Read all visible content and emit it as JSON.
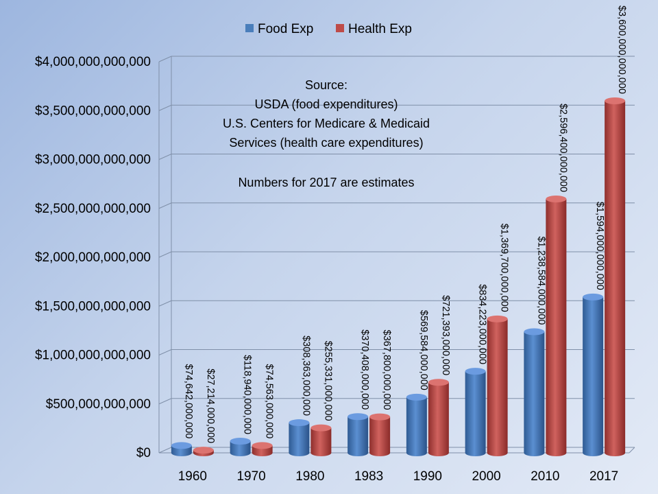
{
  "chart_data": {
    "type": "bar",
    "title": "",
    "xlabel": "",
    "ylabel": "",
    "categories": [
      "1960",
      "1970",
      "1980",
      "1983",
      "1990",
      "2000",
      "2010",
      "2017"
    ],
    "series": [
      {
        "name": "Food Exp",
        "color": "#4a7ebb",
        "values": [
          74642000000,
          118940000000,
          308363000000,
          370408000000,
          569584000000,
          834223000000,
          1238584000000,
          1594000000000
        ],
        "labels": [
          "$74,642,000,000",
          "$118,940,000,000",
          "$308,363,000,000",
          "$370,408,000,000",
          "$569,584,000,000",
          "$834,223,000,000",
          "$1,238,584,000,000",
          "$1,594,000,000,000"
        ]
      },
      {
        "name": "Health Exp",
        "color": "#be4b48",
        "values": [
          27214000000,
          74563000000,
          255331000000,
          367800000000,
          721393000000,
          1369700000000,
          2596400000000,
          3600000000000
        ],
        "labels": [
          "$27,214,000,000",
          "$74,563,000,000",
          "$255,331,000,000",
          "$367,800,000,000",
          "$721,393,000,000",
          "$1,369,700,000,000",
          "$2,596,400,000,000",
          "$3,600,000,000,000"
        ]
      }
    ],
    "ylim": [
      0,
      4000000000000
    ],
    "yticks": [
      0,
      500000000000,
      1000000000000,
      1500000000000,
      2000000000000,
      2500000000000,
      3000000000000,
      3500000000000,
      4000000000000
    ],
    "ytick_labels": [
      "$0",
      "$500,000,000,000",
      "$1,000,000,000,000",
      "$1,500,000,000,000",
      "$2,000,000,000,000",
      "$2,500,000,000,000",
      "$3,000,000,000,000",
      "$3,500,000,000,000",
      "$4,000,000,000,000"
    ],
    "grid": true,
    "legend_position": "top",
    "annotation": {
      "lines": [
        "Source:",
        "USDA (food expenditures)",
        "U.S. Centers for Medicare & Medicaid",
        "Services (health care expenditures)",
        "",
        "Numbers for 2017 are estimates"
      ]
    }
  }
}
